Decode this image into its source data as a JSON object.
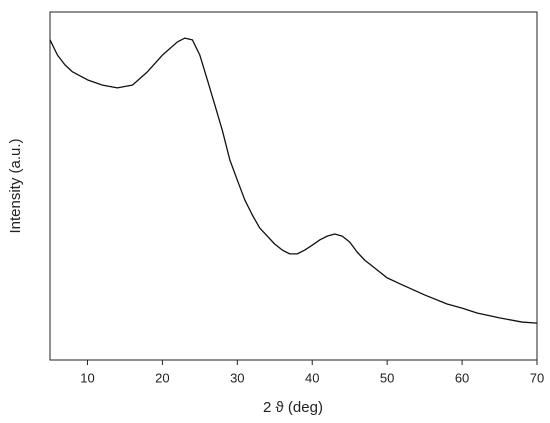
{
  "chart_data": {
    "type": "line",
    "x_label": "2 ϑ (deg)",
    "y_label": "Intensity (a.u.)",
    "xlim": [
      5,
      70
    ],
    "xticks": [
      10,
      20,
      30,
      40,
      50,
      60,
      70
    ],
    "ylim": [
      0,
      100
    ],
    "series": [
      {
        "color": "#111111",
        "x": [
          5,
          6,
          7,
          8,
          10,
          12,
          14,
          16,
          18,
          20,
          22,
          23,
          24,
          25,
          26,
          27,
          28,
          29,
          30,
          31,
          32,
          33,
          34,
          35,
          36,
          37,
          38,
          39,
          40,
          41,
          42,
          43,
          44,
          45,
          46,
          47,
          48,
          50,
          52,
          55,
          58,
          60,
          62,
          65,
          68,
          70
        ],
        "values": [
          92,
          87.6,
          84.8,
          82.8,
          80.5,
          79,
          78.2,
          79,
          82.8,
          87.6,
          91.4,
          92.5,
          92,
          87.6,
          80.5,
          73.3,
          66,
          57.5,
          51.7,
          46,
          41.7,
          37.9,
          35.6,
          33.3,
          31.6,
          30.5,
          30.5,
          31.6,
          33,
          34.5,
          35.6,
          36.2,
          35.6,
          33.9,
          31,
          28.7,
          27,
          23.6,
          21.6,
          18.7,
          16.1,
          14.9,
          13.5,
          12.1,
          10.9,
          10.6
        ]
      }
    ]
  }
}
